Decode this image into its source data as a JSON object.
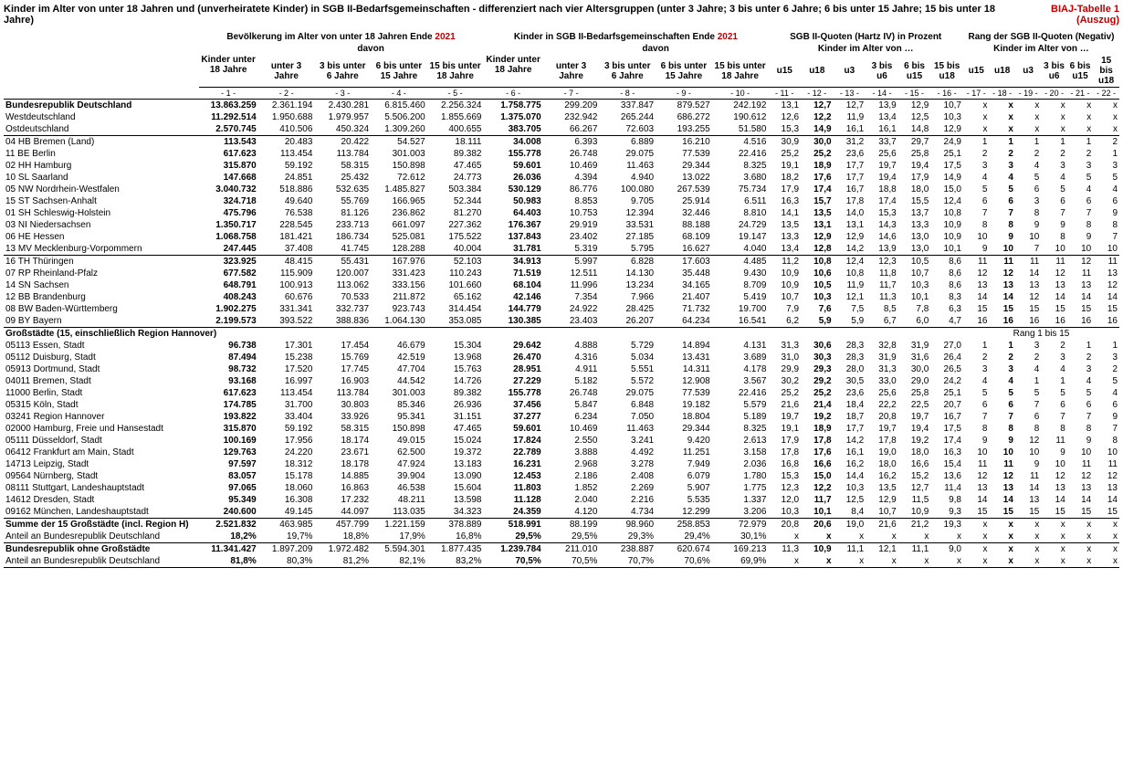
{
  "title_main_a": "Kinder im Alter von unter 18 Jahren und (unverheiratete Kinder) in SGB II-Bedarfsgemeinschaften - differenziert nach vier Altersgruppen (unter 3 Jahre; 3 bis unter 6 Jahre; 6 bis unter 15 Jahre; 15 bis unter 18 Jahre)",
  "title_right": "BIAJ-Tabelle 1 (Auszug)",
  "yr": "2021",
  "grp1": "Bevölkerung im Alter von unter 18 Jahren Ende ",
  "grp2": "Kinder in SGB II-Bedarfsgemeinschaften Ende ",
  "grp3": "SGB II-Quoten (Hartz IV) in Prozent",
  "grp4": "Rang der SGB II-Quoten (Negativ)",
  "sub_kinder_alter": "Kinder im Alter von …",
  "davon": "davon",
  "h_ku18": "Kinder unter 18 Jahre",
  "h_u3": "unter 3 Jahre",
  "h_3_6": "3 bis unter 6 Jahre",
  "h_6_15": "6 bis unter 15 Jahre",
  "h_15_18": "15 bis unter 18 Jahre",
  "h_u15": "u15",
  "h_u18": "u18",
  "h_su3": "u3",
  "h_s36": "3 bis u6",
  "h_s615": "6 bis u15",
  "h_s1518": "15 bis u18",
  "colnums": [
    "- 1 -",
    "- 2 -",
    "- 3 -",
    "- 4 -",
    "- 5 -",
    "- 6 -",
    "- 7 -",
    "- 8 -",
    "- 9 -",
    "- 10 -",
    "- 11 -",
    "- 12 -",
    "- 13 -",
    "- 14 -",
    "- 15 -",
    "- 16 -",
    "- 17 -",
    "- 18 -",
    "- 19 -",
    "- 20 -",
    "- 21 -",
    "- 22 -"
  ],
  "rows_top": [
    {
      "lbl": "Bundesrepublik Deutschland",
      "bold": true,
      "v": [
        "13.863.259",
        "2.361.194",
        "2.430.281",
        "6.815.460",
        "2.256.324",
        "1.758.775",
        "299.209",
        "337.847",
        "879.527",
        "242.192",
        "13,1",
        "12,7",
        "12,7",
        "13,9",
        "12,9",
        "10,7",
        "x",
        "x",
        "x",
        "x",
        "x",
        "x"
      ]
    },
    {
      "lbl": "  Westdeutschland",
      "v": [
        "11.292.514",
        "1.950.688",
        "1.979.957",
        "5.506.200",
        "1.855.669",
        "1.375.070",
        "232.942",
        "265.244",
        "686.272",
        "190.612",
        "12,6",
        "12,2",
        "11,9",
        "13,4",
        "12,5",
        "10,3",
        "x",
        "x",
        "x",
        "x",
        "x",
        "x"
      ]
    },
    {
      "lbl": "  Ostdeutschland",
      "v": [
        "2.570.745",
        "410.506",
        "450.324",
        "1.309.260",
        "400.655",
        "383.705",
        "66.267",
        "72.603",
        "193.255",
        "51.580",
        "15,3",
        "14,9",
        "16,1",
        "16,1",
        "14,8",
        "12,9",
        "x",
        "x",
        "x",
        "x",
        "x",
        "x"
      ]
    }
  ],
  "rows_laender": [
    {
      "lbl": "04 HB  Bremen (Land)",
      "v": [
        "113.543",
        "20.483",
        "20.422",
        "54.527",
        "18.111",
        "34.008",
        "6.393",
        "6.889",
        "16.210",
        "4.516",
        "30,9",
        "30,0",
        "31,2",
        "33,7",
        "29,7",
        "24,9",
        "1",
        "1",
        "1",
        "1",
        "1",
        "2"
      ]
    },
    {
      "lbl": "11 BE  Berlin",
      "v": [
        "617.623",
        "113.454",
        "113.784",
        "301.003",
        "89.382",
        "155.778",
        "26.748",
        "29.075",
        "77.539",
        "22.416",
        "25,2",
        "25,2",
        "23,6",
        "25,6",
        "25,8",
        "25,1",
        "2",
        "2",
        "2",
        "2",
        "2",
        "1"
      ]
    },
    {
      "lbl": "02 HH  Hamburg",
      "v": [
        "315.870",
        "59.192",
        "58.315",
        "150.898",
        "47.465",
        "59.601",
        "10.469",
        "11.463",
        "29.344",
        "8.325",
        "19,1",
        "18,9",
        "17,7",
        "19,7",
        "19,4",
        "17,5",
        "3",
        "3",
        "4",
        "3",
        "3",
        "3"
      ]
    },
    {
      "lbl": "10 SL   Saarland",
      "v": [
        "147.668",
        "24.851",
        "25.432",
        "72.612",
        "24.773",
        "26.036",
        "4.394",
        "4.940",
        "13.022",
        "3.680",
        "18,2",
        "17,6",
        "17,7",
        "19,4",
        "17,9",
        "14,9",
        "4",
        "4",
        "5",
        "4",
        "5",
        "5"
      ]
    },
    {
      "lbl": "05 NW Nordrhein-Westfalen",
      "v": [
        "3.040.732",
        "518.886",
        "532.635",
        "1.485.827",
        "503.384",
        "530.129",
        "86.776",
        "100.080",
        "267.539",
        "75.734",
        "17,9",
        "17,4",
        "16,7",
        "18,8",
        "18,0",
        "15,0",
        "5",
        "5",
        "6",
        "5",
        "4",
        "4"
      ]
    },
    {
      "lbl": "15 ST   Sachsen-Anhalt",
      "v": [
        "324.718",
        "49.640",
        "55.769",
        "166.965",
        "52.344",
        "50.983",
        "8.853",
        "9.705",
        "25.914",
        "6.511",
        "16,3",
        "15,7",
        "17,8",
        "17,4",
        "15,5",
        "12,4",
        "6",
        "6",
        "3",
        "6",
        "6",
        "6"
      ]
    },
    {
      "lbl": "01 SH  Schleswig-Holstein",
      "v": [
        "475.796",
        "76.538",
        "81.126",
        "236.862",
        "81.270",
        "64.403",
        "10.753",
        "12.394",
        "32.446",
        "8.810",
        "14,1",
        "13,5",
        "14,0",
        "15,3",
        "13,7",
        "10,8",
        "7",
        "7",
        "8",
        "7",
        "7",
        "9"
      ]
    },
    {
      "lbl": "03 NI   Niedersachsen",
      "v": [
        "1.350.717",
        "228.545",
        "233.713",
        "661.097",
        "227.362",
        "176.367",
        "29.919",
        "33.531",
        "88.188",
        "24.729",
        "13,5",
        "13,1",
        "13,1",
        "14,3",
        "13,3",
        "10,9",
        "8",
        "8",
        "9",
        "9",
        "8",
        "8"
      ]
    },
    {
      "lbl": "06 HE  Hessen",
      "v": [
        "1.068.758",
        "181.421",
        "186.734",
        "525.081",
        "175.522",
        "137.843",
        "23.402",
        "27.185",
        "68.109",
        "19.147",
        "13,3",
        "12,9",
        "12,9",
        "14,6",
        "13,0",
        "10,9",
        "10",
        "9",
        "10",
        "8",
        "9",
        "7"
      ]
    },
    {
      "lbl": "13 MV Mecklenburg-Vorpommern",
      "v": [
        "247.445",
        "37.408",
        "41.745",
        "128.288",
        "40.004",
        "31.781",
        "5.319",
        "5.795",
        "16.627",
        "4.040",
        "13,4",
        "12,8",
        "14,2",
        "13,9",
        "13,0",
        "10,1",
        "9",
        "10",
        "7",
        "10",
        "10",
        "10"
      ]
    }
  ],
  "rows_laender2": [
    {
      "lbl": "16 TH  Thüringen",
      "v": [
        "323.925",
        "48.415",
        "55.431",
        "167.976",
        "52.103",
        "34.913",
        "5.997",
        "6.828",
        "17.603",
        "4.485",
        "11,2",
        "10,8",
        "12,4",
        "12,3",
        "10,5",
        "8,6",
        "11",
        "11",
        "11",
        "11",
        "12",
        "11"
      ]
    },
    {
      "lbl": "07 RP  Rheinland-Pfalz",
      "v": [
        "677.582",
        "115.909",
        "120.007",
        "331.423",
        "110.243",
        "71.519",
        "12.511",
        "14.130",
        "35.448",
        "9.430",
        "10,9",
        "10,6",
        "10,8",
        "11,8",
        "10,7",
        "8,6",
        "12",
        "12",
        "14",
        "12",
        "11",
        "13"
      ]
    },
    {
      "lbl": "14 SN  Sachsen",
      "v": [
        "648.791",
        "100.913",
        "113.062",
        "333.156",
        "101.660",
        "68.104",
        "11.996",
        "13.234",
        "34.165",
        "8.709",
        "10,9",
        "10,5",
        "11,9",
        "11,7",
        "10,3",
        "8,6",
        "13",
        "13",
        "13",
        "13",
        "13",
        "12"
      ]
    },
    {
      "lbl": "12 BB  Brandenburg",
      "v": [
        "408.243",
        "60.676",
        "70.533",
        "211.872",
        "65.162",
        "42.146",
        "7.354",
        "7.966",
        "21.407",
        "5.419",
        "10,7",
        "10,3",
        "12,1",
        "11,3",
        "10,1",
        "8,3",
        "14",
        "14",
        "12",
        "14",
        "14",
        "14"
      ]
    },
    {
      "lbl": "08 BW Baden-Württemberg",
      "v": [
        "1.902.275",
        "331.341",
        "332.737",
        "923.743",
        "314.454",
        "144.779",
        "24.922",
        "28.425",
        "71.732",
        "19.700",
        "7,9",
        "7,6",
        "7,5",
        "8,5",
        "7,8",
        "6,3",
        "15",
        "15",
        "15",
        "15",
        "15",
        "15"
      ]
    },
    {
      "lbl": "09 BY  Bayern",
      "v": [
        "2.199.573",
        "393.522",
        "388.836",
        "1.064.130",
        "353.085",
        "130.385",
        "23.403",
        "26.207",
        "64.234",
        "16.541",
        "6,2",
        "5,9",
        "5,9",
        "6,7",
        "6,0",
        "4,7",
        "16",
        "16",
        "16",
        "16",
        "16",
        "16"
      ]
    }
  ],
  "sect_cities": "Großstädte (15, einschließlich Region Hannover)",
  "sect_cities_right": "Rang 1 bis 15",
  "rows_cities": [
    {
      "lbl": "05113 Essen, Stadt",
      "v": [
        "96.738",
        "17.301",
        "17.454",
        "46.679",
        "15.304",
        "29.642",
        "4.888",
        "5.729",
        "14.894",
        "4.131",
        "31,3",
        "30,6",
        "28,3",
        "32,8",
        "31,9",
        "27,0",
        "1",
        "1",
        "3",
        "2",
        "1",
        "1"
      ]
    },
    {
      "lbl": "05112 Duisburg, Stadt",
      "v": [
        "87.494",
        "15.238",
        "15.769",
        "42.519",
        "13.968",
        "26.470",
        "4.316",
        "5.034",
        "13.431",
        "3.689",
        "31,0",
        "30,3",
        "28,3",
        "31,9",
        "31,6",
        "26,4",
        "2",
        "2",
        "2",
        "3",
        "2",
        "3"
      ]
    },
    {
      "lbl": "05913 Dortmund, Stadt",
      "v": [
        "98.732",
        "17.520",
        "17.745",
        "47.704",
        "15.763",
        "28.951",
        "4.911",
        "5.551",
        "14.311",
        "4.178",
        "29,9",
        "29,3",
        "28,0",
        "31,3",
        "30,0",
        "26,5",
        "3",
        "3",
        "4",
        "4",
        "3",
        "2"
      ]
    },
    {
      "lbl": "04011 Bremen, Stadt",
      "v": [
        "93.168",
        "16.997",
        "16.903",
        "44.542",
        "14.726",
        "27.229",
        "5.182",
        "5.572",
        "12.908",
        "3.567",
        "30,2",
        "29,2",
        "30,5",
        "33,0",
        "29,0",
        "24,2",
        "4",
        "4",
        "1",
        "1",
        "4",
        "5"
      ]
    },
    {
      "lbl": "11000 Berlin, Stadt",
      "v": [
        "617.623",
        "113.454",
        "113.784",
        "301.003",
        "89.382",
        "155.778",
        "26.748",
        "29.075",
        "77.539",
        "22.416",
        "25,2",
        "25,2",
        "23,6",
        "25,6",
        "25,8",
        "25,1",
        "5",
        "5",
        "5",
        "5",
        "5",
        "4"
      ]
    },
    {
      "lbl": "05315 Köln, Stadt",
      "v": [
        "174.785",
        "31.700",
        "30.803",
        "85.346",
        "26.936",
        "37.456",
        "5.847",
        "6.848",
        "19.182",
        "5.579",
        "21,6",
        "21,4",
        "18,4",
        "22,2",
        "22,5",
        "20,7",
        "6",
        "6",
        "7",
        "6",
        "6",
        "6"
      ]
    },
    {
      "lbl": "03241 Region Hannover",
      "v": [
        "193.822",
        "33.404",
        "33.926",
        "95.341",
        "31.151",
        "37.277",
        "6.234",
        "7.050",
        "18.804",
        "5.189",
        "19,7",
        "19,2",
        "18,7",
        "20,8",
        "19,7",
        "16,7",
        "7",
        "7",
        "6",
        "7",
        "7",
        "9"
      ]
    },
    {
      "lbl": "02000 Hamburg, Freie und Hansestadt",
      "v": [
        "315.870",
        "59.192",
        "58.315",
        "150.898",
        "47.465",
        "59.601",
        "10.469",
        "11.463",
        "29.344",
        "8.325",
        "19,1",
        "18,9",
        "17,7",
        "19,7",
        "19,4",
        "17,5",
        "8",
        "8",
        "8",
        "8",
        "8",
        "7"
      ]
    },
    {
      "lbl": "05111 Düsseldorf, Stadt",
      "v": [
        "100.169",
        "17.956",
        "18.174",
        "49.015",
        "15.024",
        "17.824",
        "2.550",
        "3.241",
        "9.420",
        "2.613",
        "17,9",
        "17,8",
        "14,2",
        "17,8",
        "19,2",
        "17,4",
        "9",
        "9",
        "12",
        "11",
        "9",
        "8"
      ]
    },
    {
      "lbl": "06412 Frankfurt am Main, Stadt",
      "v": [
        "129.763",
        "24.220",
        "23.671",
        "62.500",
        "19.372",
        "22.789",
        "3.888",
        "4.492",
        "11.251",
        "3.158",
        "17,8",
        "17,6",
        "16,1",
        "19,0",
        "18,0",
        "16,3",
        "10",
        "10",
        "10",
        "9",
        "10",
        "10"
      ]
    },
    {
      "lbl": "14713 Leipzig, Stadt",
      "v": [
        "97.597",
        "18.312",
        "18.178",
        "47.924",
        "13.183",
        "16.231",
        "2.968",
        "3.278",
        "7.949",
        "2.036",
        "16,8",
        "16,6",
        "16,2",
        "18,0",
        "16,6",
        "15,4",
        "11",
        "11",
        "9",
        "10",
        "11",
        "11"
      ]
    },
    {
      "lbl": "09564 Nürnberg, Stadt",
      "v": [
        "83.057",
        "15.178",
        "14.885",
        "39.904",
        "13.090",
        "12.453",
        "2.186",
        "2.408",
        "6.079",
        "1.780",
        "15,3",
        "15,0",
        "14,4",
        "16,2",
        "15,2",
        "13,6",
        "12",
        "12",
        "11",
        "12",
        "12",
        "12"
      ]
    },
    {
      "lbl": "08111 Stuttgart, Landeshauptstadt",
      "v": [
        "97.065",
        "18.060",
        "16.863",
        "46.538",
        "15.604",
        "11.803",
        "1.852",
        "2.269",
        "5.907",
        "1.775",
        "12,3",
        "12,2",
        "10,3",
        "13,5",
        "12,7",
        "11,4",
        "13",
        "13",
        "14",
        "13",
        "13",
        "13"
      ]
    },
    {
      "lbl": "14612 Dresden, Stadt",
      "v": [
        "95.349",
        "16.308",
        "17.232",
        "48.211",
        "13.598",
        "11.128",
        "2.040",
        "2.216",
        "5.535",
        "1.337",
        "12,0",
        "11,7",
        "12,5",
        "12,9",
        "11,5",
        "9,8",
        "14",
        "14",
        "13",
        "14",
        "14",
        "14"
      ]
    },
    {
      "lbl": "09162 München, Landeshauptstadt",
      "v": [
        "240.600",
        "49.145",
        "44.097",
        "113.035",
        "34.323",
        "24.359",
        "4.120",
        "4.734",
        "12.299",
        "3.206",
        "10,3",
        "10,1",
        "8,4",
        "10,7",
        "10,9",
        "9,3",
        "15",
        "15",
        "15",
        "15",
        "15",
        "15"
      ]
    }
  ],
  "rows_sum": [
    {
      "lbl": "Summe der 15 Großstädte (incl. Region H)",
      "bold": true,
      "v": [
        "2.521.832",
        "463.985",
        "457.799",
        "1.221.159",
        "378.889",
        "518.991",
        "88.199",
        "98.960",
        "258.853",
        "72.979",
        "20,8",
        "20,6",
        "19,0",
        "21,6",
        "21,2",
        "19,3",
        "x",
        "x",
        "x",
        "x",
        "x",
        "x"
      ]
    },
    {
      "lbl": "Anteil an Bundesrepublik Deutschland",
      "v": [
        "18,2%",
        "19,7%",
        "18,8%",
        "17,9%",
        "16,8%",
        "29,5%",
        "29,5%",
        "29,3%",
        "29,4%",
        "30,1%",
        "x",
        "x",
        "x",
        "x",
        "x",
        "x",
        "x",
        "x",
        "x",
        "x",
        "x",
        "x"
      ]
    }
  ],
  "rows_bottom": [
    {
      "lbl": "Bundesrepublik ohne Großstädte",
      "bold": true,
      "v": [
        "11.341.427",
        "1.897.209",
        "1.972.482",
        "5.594.301",
        "1.877.435",
        "1.239.784",
        "211.010",
        "238.887",
        "620.674",
        "169.213",
        "11,3",
        "10,9",
        "11,1",
        "12,1",
        "11,1",
        "9,0",
        "x",
        "x",
        "x",
        "x",
        "x",
        "x"
      ]
    },
    {
      "lbl": "Anteil an Bundesrepublik Deutschland",
      "v": [
        "81,8%",
        "80,3%",
        "81,2%",
        "82,1%",
        "83,2%",
        "70,5%",
        "70,5%",
        "70,7%",
        "70,6%",
        "69,9%",
        "x",
        "x",
        "x",
        "x",
        "x",
        "x",
        "x",
        "x",
        "x",
        "x",
        "x",
        "x"
      ]
    }
  ]
}
